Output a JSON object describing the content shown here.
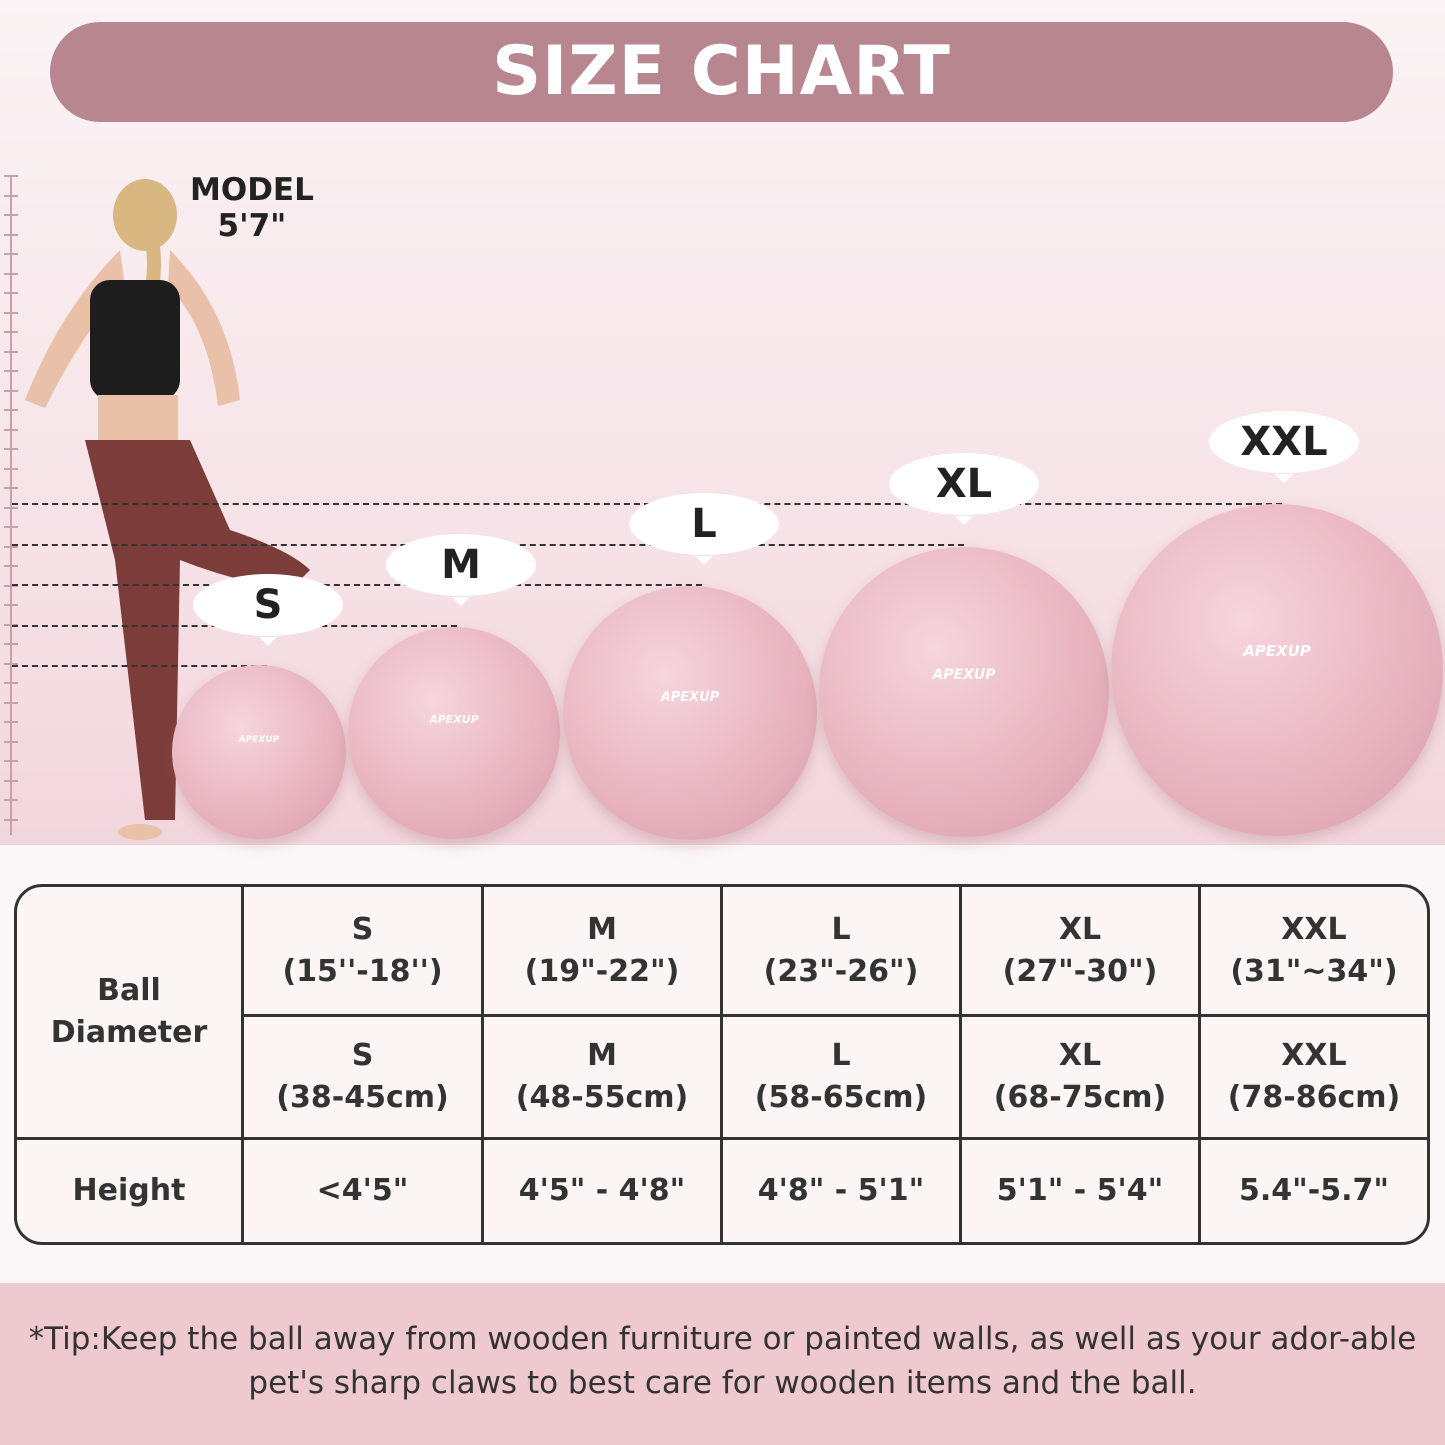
{
  "title": "SIZE CHART",
  "model": {
    "label": "MODEL",
    "height": "5'7\""
  },
  "brand": "APEXUP",
  "balls": [
    {
      "size": "S"
    },
    {
      "size": "M"
    },
    {
      "size": "L"
    },
    {
      "size": "XL"
    },
    {
      "size": "XXL"
    }
  ],
  "table": {
    "row_label_diameter": "Ball Diameter",
    "row_label_height": "Height",
    "inches": [
      {
        "size": "S",
        "value": "(15''-18'')"
      },
      {
        "size": "M",
        "value": "(19\"-22\")"
      },
      {
        "size": "L",
        "value": "(23\"-26\")"
      },
      {
        "size": "XL",
        "value": "(27\"-30\")"
      },
      {
        "size": "XXL",
        "value": "(31\"~34\")"
      }
    ],
    "cm": [
      {
        "size": "S",
        "value": "(38-45cm)"
      },
      {
        "size": "M",
        "value": "(48-55cm)"
      },
      {
        "size": "L",
        "value": "(58-65cm)"
      },
      {
        "size": "XL",
        "value": "(68-75cm)"
      },
      {
        "size": "XXL",
        "value": "(78-86cm)"
      }
    ],
    "heights": [
      "<4'5\"",
      "4'5\" - 4'8\"",
      "4'8\" - 5'1\"",
      "5'1\" - 5'4\"",
      "5.4\"-5.7\""
    ]
  },
  "tip": "*Tip:Keep the ball away from wooden furniture or painted walls, as well as your ador-able pet's sharp claws to best care for wooden items and the ball.",
  "colors": {
    "header": "#b8868f",
    "ball": "#e7b3bf",
    "tip_band": "#efc9d0"
  }
}
